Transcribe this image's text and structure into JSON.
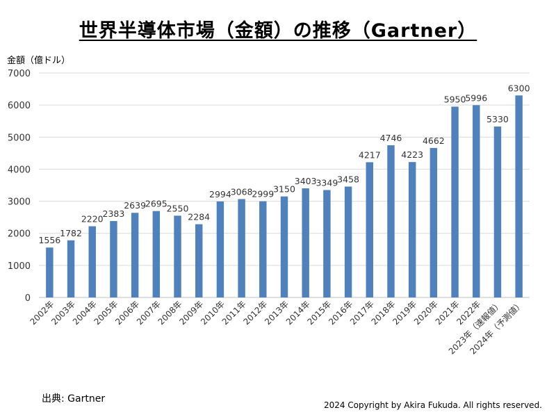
{
  "title": "世界半導体市場（金額）の推移（Gartner）",
  "unit_label": "金額（億ドル）",
  "source": "出典: Gartner",
  "copyright": "2024 Copyright by Akira Fukuda. All rights reserved.",
  "colors": {
    "bar": "#4f81bd",
    "grid": "#d9d9d9",
    "axis": "#bfbfbf"
  },
  "chart_data": {
    "type": "bar",
    "title": "世界半導体市場（金額）の推移（Gartner）",
    "xlabel": "",
    "ylabel": "金額（億ドル）",
    "ylim": [
      0,
      7000
    ],
    "yticks": [
      0,
      1000,
      2000,
      3000,
      4000,
      5000,
      6000,
      7000
    ],
    "grid": true,
    "legend": "none",
    "categories": [
      "2002年",
      "2003年",
      "2004年",
      "2005年",
      "2006年",
      "2007年",
      "2008年",
      "2009年",
      "2010年",
      "2011年",
      "2012年",
      "2013年",
      "2014年",
      "2015年",
      "2016年",
      "2017年",
      "2018年",
      "2019年",
      "2020年",
      "2021年",
      "2022年",
      "2023年（速報値）",
      "2024年（予測値）"
    ],
    "values": [
      1556,
      1782,
      2220,
      2383,
      2639,
      2695,
      2550,
      2284,
      2994,
      3068,
      2999,
      3150,
      3403,
      3349,
      3458,
      4217,
      4746,
      4223,
      4662,
      5950,
      5996,
      5330,
      6300
    ]
  }
}
